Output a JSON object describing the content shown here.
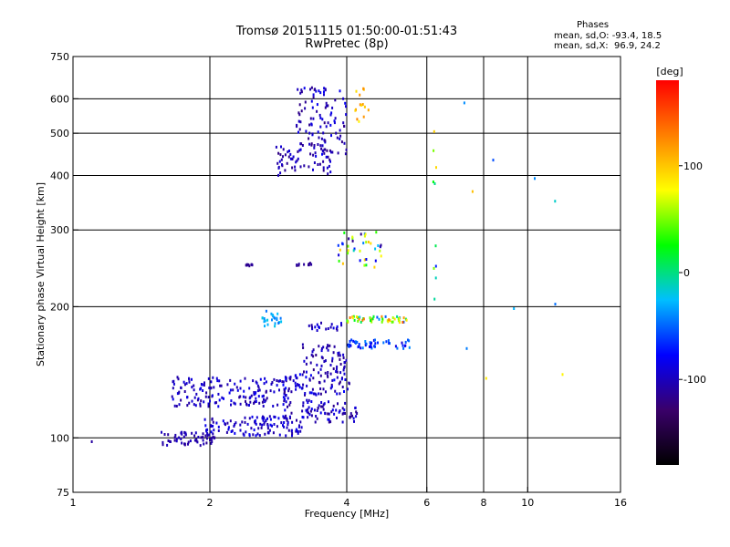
{
  "title_line1": "Tromsø 20151115 01:50:00-01:51:43",
  "title_line2": "RwPretec (8p)",
  "phases": {
    "heading": "Phases",
    "line_o": "mean, sd,O: -93.4, 18.5",
    "line_x": "mean, sd,X:  96.9, 24.2"
  },
  "colorbar": {
    "label": "[deg]",
    "ticks": [
      {
        "value": 100,
        "label": "100"
      },
      {
        "value": 0,
        "label": "0"
      },
      {
        "value": -100,
        "label": "-100"
      }
    ],
    "range": [
      -180,
      180
    ],
    "colors": [
      "#000000",
      "#3a006a",
      "#0000ff",
      "#00bfff",
      "#00ff00",
      "#ffff00",
      "#ff8000",
      "#ff0000"
    ]
  },
  "chart_data": {
    "type": "scatter",
    "title": "Tromsø 20151115 01:50:00-01:51:43",
    "subtitle": "RwPretec (8p)",
    "xlabel": "Frequency [MHz]",
    "ylabel": "Stationary phase Virtual Height [km]",
    "xscale": "log",
    "yscale": "log",
    "xlim": [
      1,
      16
    ],
    "ylim": [
      75,
      750
    ],
    "xticks": [
      1,
      2,
      4,
      6,
      8,
      10,
      16
    ],
    "yticks": [
      75,
      100,
      200,
      300,
      400,
      500,
      600,
      750
    ],
    "xgrid": [
      2,
      4,
      6,
      8,
      10
    ],
    "ygrid": [
      100,
      200,
      300,
      400,
      500,
      600
    ],
    "color_quantity": "phase [deg]",
    "clusters": [
      {
        "x": [
          1.55,
          2.05
        ],
        "y": [
          96,
          103
        ],
        "phase": [
          -115,
          -95
        ],
        "n": 60
      },
      {
        "x": [
          1.95,
          3.2
        ],
        "y": [
          101,
          112
        ],
        "phase": [
          -110,
          -80
        ],
        "n": 120
      },
      {
        "x": [
          2.9,
          4.3
        ],
        "y": [
          108,
          122
        ],
        "phase": [
          -120,
          -80
        ],
        "n": 80
      },
      {
        "x": [
          1.65,
          3.0
        ],
        "y": [
          118,
          128
        ],
        "phase": [
          -115,
          -80
        ],
        "n": 90
      },
      {
        "x": [
          1.65,
          3.1
        ],
        "y": [
          128,
          138
        ],
        "phase": [
          -110,
          -85
        ],
        "n": 80
      },
      {
        "x": [
          2.9,
          4.1
        ],
        "y": [
          125,
          140
        ],
        "phase": [
          -120,
          -70
        ],
        "n": 70
      },
      {
        "x": [
          3.2,
          4.0
        ],
        "y": [
          140,
          165
        ],
        "phase": [
          -120,
          -90
        ],
        "n": 60
      },
      {
        "x": [
          4.0,
          5.5
        ],
        "y": [
          160,
          168
        ],
        "phase": [
          -90,
          -40
        ],
        "n": 50
      },
      {
        "x": [
          4.0,
          5.5
        ],
        "y": [
          184,
          190
        ],
        "phase": [
          -60,
          140
        ],
        "n": 50
      },
      {
        "x": [
          2.6,
          2.9
        ],
        "y": [
          180,
          196
        ],
        "phase": [
          -50,
          -20
        ],
        "n": 25
      },
      {
        "x": [
          3.3,
          3.9
        ],
        "y": [
          176,
          184
        ],
        "phase": [
          -110,
          -80
        ],
        "n": 20
      },
      {
        "x": [
          2.4,
          2.5
        ],
        "y": [
          248,
          250
        ],
        "phase": [
          -120,
          -110
        ],
        "n": 8
      },
      {
        "x": [
          3.1,
          3.35
        ],
        "y": [
          248,
          252
        ],
        "phase": [
          -120,
          -110
        ],
        "n": 10
      },
      {
        "x": [
          3.8,
          4.8
        ],
        "y": [
          245,
          300
        ],
        "phase": [
          -120,
          120
        ],
        "n": 40
      },
      {
        "x": [
          2.8,
          3.7
        ],
        "y": [
          400,
          470
        ],
        "phase": [
          -120,
          -90
        ],
        "n": 60
      },
      {
        "x": [
          3.1,
          4.0
        ],
        "y": [
          440,
          640
        ],
        "phase": [
          -120,
          -80
        ],
        "n": 110
      },
      {
        "x": [
          4.1,
          4.5
        ],
        "y": [
          520,
          640
        ],
        "phase": [
          80,
          130
        ],
        "n": 15
      },
      {
        "x": [
          6.2,
          6.3
        ],
        "y": [
          160,
          520
        ],
        "phase": [
          -110,
          100
        ],
        "n": 10
      },
      {
        "x": [
          7.0,
          12.0
        ],
        "y": [
          110,
          630
        ],
        "phase": [
          -100,
          110
        ],
        "n": 10
      },
      {
        "x": [
          1.1,
          1.1
        ],
        "y": [
          98,
          98
        ],
        "phase": [
          -110,
          -110
        ],
        "n": 1
      }
    ]
  }
}
